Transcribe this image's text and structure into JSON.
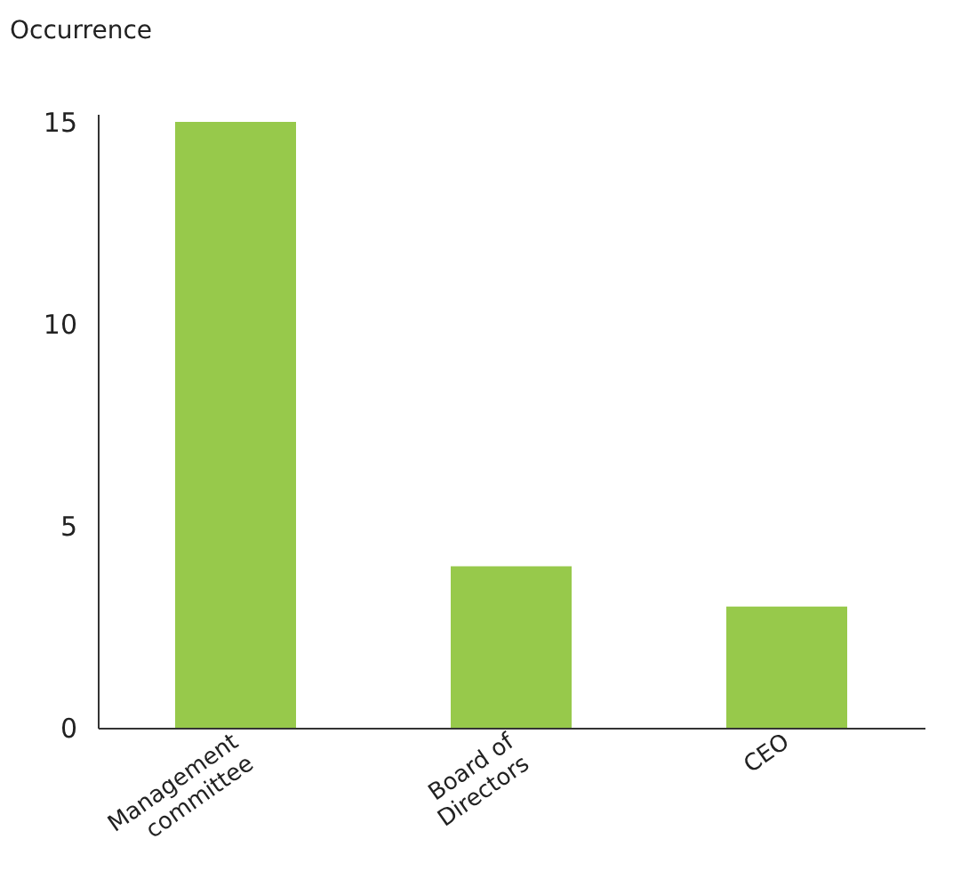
{
  "chart_data": {
    "type": "bar",
    "ylabel": "Occurrence",
    "categories": [
      "Management\ncommittee",
      "Board of\nDirectors",
      "CEO"
    ],
    "values": [
      15,
      4,
      3
    ],
    "color": "#97c94b",
    "ylim": [
      0,
      15.2
    ],
    "yticks": [
      0,
      5,
      10,
      15
    ],
    "grid": false
  }
}
